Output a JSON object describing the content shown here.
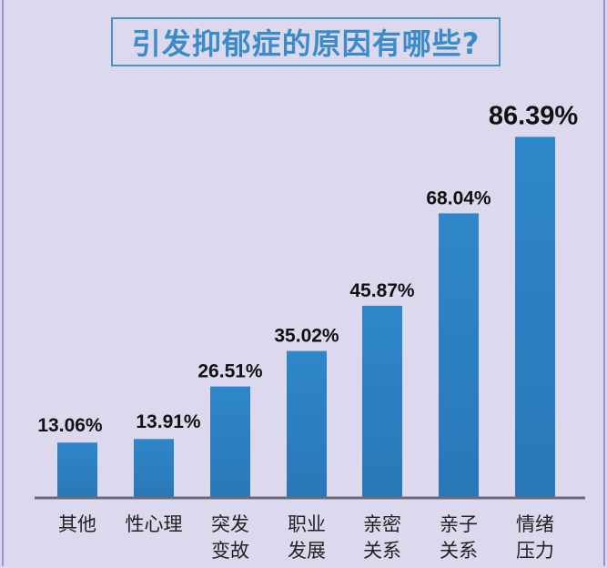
{
  "chart_data": {
    "type": "bar",
    "title": "引发抑郁症的原因有哪些?",
    "categories": [
      [
        "其他"
      ],
      [
        "性心理"
      ],
      [
        "突发",
        "变故"
      ],
      [
        "职业",
        "发展"
      ],
      [
        "亲密",
        "关系"
      ],
      [
        "亲子",
        "关系"
      ],
      [
        "情绪",
        "压力"
      ]
    ],
    "values": [
      13.06,
      13.91,
      26.51,
      35.02,
      45.87,
      68.04,
      86.39
    ],
    "data_labels": [
      "13.06%",
      "13.91%",
      "26.51%",
      "35.02%",
      "45.87%",
      "68.04%",
      "86.39%"
    ],
    "ylim": [
      0,
      100
    ],
    "grid": false,
    "colors": {
      "bar": "#2e87c9",
      "bar_dark": "#2a78b8",
      "background": "#dcd8ee",
      "title": "#3a8cc8",
      "axis": "#6b6b78"
    }
  }
}
